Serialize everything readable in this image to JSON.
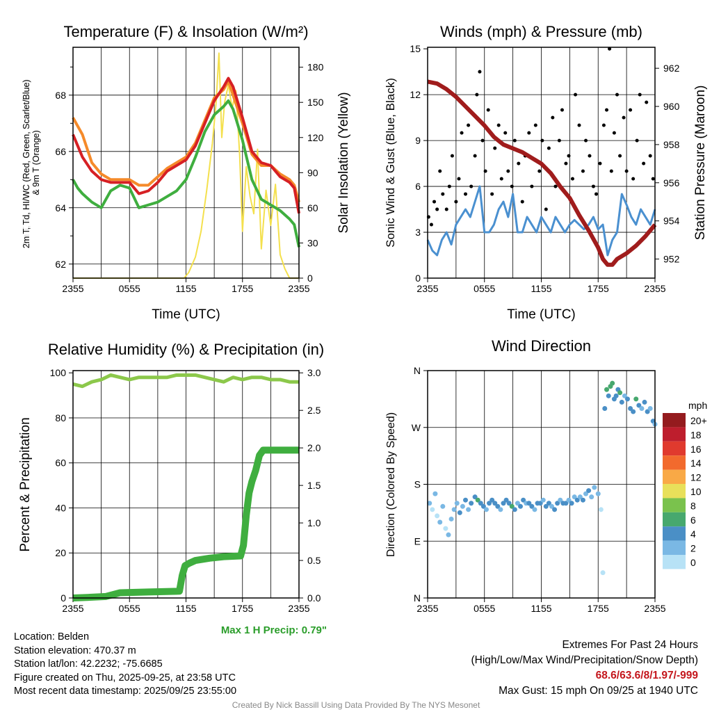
{
  "chart_data": [
    {
      "type": "line",
      "title": "Temperature (F) & Insolation (W/m²)",
      "xlabel": "Time (UTC)",
      "ylabel": "2m T, Td, HI/WC (Red, Green, Scarlet/Blue) & 9m T (Orange)",
      "ylabel_line1": "2m T, Tₐ, HI/WC (Red, Green, Scarlet/Blue)",
      "ylabel_line2": "& 9m T (Orange)",
      "y2label": "Solar Insolation (Yellow)",
      "ylim": [
        61.5,
        69.7
      ],
      "y2lim": [
        0,
        197
      ],
      "xticks": [
        "2355",
        "0555",
        "1155",
        "1755",
        "2355"
      ],
      "yticks": [
        62,
        64,
        66,
        68
      ],
      "y2ticks": [
        0,
        30,
        60,
        90,
        120,
        150,
        180
      ],
      "x_hours": [
        0,
        0.5,
        1,
        2,
        3,
        4,
        5,
        6,
        7,
        8,
        9,
        10,
        11,
        12,
        13,
        14,
        15,
        16,
        16.5,
        17,
        18,
        19,
        20,
        21,
        22,
        23,
        23.5,
        24
      ],
      "series": [
        {
          "name": "9m T",
          "color": "#f58a2a",
          "axis": "left",
          "values": [
            67.2,
            66.9,
            66.6,
            65.6,
            65.2,
            65.0,
            65.0,
            65.0,
            64.8,
            64.8,
            65.1,
            65.4,
            65.6,
            65.8,
            66.3,
            67.1,
            67.9,
            68.2,
            68.5,
            68.0,
            67.0,
            65.9,
            65.5,
            65.5,
            65.2,
            65.0,
            64.8,
            64.2
          ]
        },
        {
          "name": "2m T",
          "color": "#d62024",
          "axis": "left",
          "values": [
            66.6,
            66.2,
            65.8,
            65.3,
            65.0,
            64.9,
            64.9,
            64.9,
            64.5,
            64.6,
            64.9,
            65.3,
            65.5,
            65.7,
            66.2,
            67.0,
            67.8,
            68.3,
            68.6,
            68.3,
            67.2,
            66.0,
            65.6,
            65.5,
            65.1,
            64.9,
            64.7,
            63.8
          ]
        },
        {
          "name": "Td",
          "color": "#3fae3f",
          "axis": "left",
          "values": [
            65.0,
            64.7,
            64.5,
            64.2,
            64.0,
            64.6,
            64.8,
            64.7,
            64.0,
            64.1,
            64.2,
            64.4,
            64.6,
            65.0,
            65.8,
            66.7,
            67.3,
            67.6,
            67.8,
            67.5,
            66.4,
            65.0,
            64.3,
            64.1,
            63.9,
            63.6,
            63.4,
            62.6
          ]
        },
        {
          "name": "Solar",
          "color": "#f4e04d",
          "axis": "right",
          "x_hours": [
            0,
            11.8,
            12.3,
            13,
            13.6,
            14.2,
            14.8,
            15.2,
            15.5,
            15.8,
            16.1,
            16.5,
            16.9,
            17.3,
            17.7,
            18,
            18.4,
            18.8,
            19.2,
            19.6,
            20,
            20.5,
            21,
            21.5,
            22,
            22.5,
            23,
            24
          ],
          "values": [
            0,
            0,
            5,
            18,
            40,
            75,
            115,
            150,
            192,
            120,
            150,
            165,
            145,
            160,
            105,
            40,
            95,
            70,
            55,
            110,
            25,
            75,
            45,
            80,
            20,
            8,
            0,
            0
          ]
        }
      ]
    },
    {
      "type": "line",
      "title": "Winds (mph) & Pressure (mb)",
      "xlabel": "Time (UTC)",
      "ylabel": "Sonic Wind & Gust (Blue, Black)",
      "y2label": "Station Pressure (Maroon)",
      "ylim": [
        0,
        15.1
      ],
      "y2lim": [
        951.0,
        963.1
      ],
      "xticks": [
        "2355",
        "0555",
        "1155",
        "1755",
        "2355"
      ],
      "yticks": [
        0,
        3,
        6,
        9,
        12,
        15
      ],
      "y2ticks": [
        952,
        954,
        956,
        958,
        960,
        962
      ],
      "series": [
        {
          "name": "Sonic Wind",
          "color": "#4a90d0",
          "x_hours": [
            0,
            0.5,
            1,
            1.5,
            2,
            2.5,
            3,
            3.5,
            4,
            4.5,
            5,
            5.5,
            6,
            6.5,
            7,
            7.5,
            8,
            8.5,
            9,
            9.5,
            10,
            10.5,
            11,
            11.5,
            12,
            12.5,
            13,
            13.5,
            14,
            14.5,
            15,
            15.5,
            16,
            16.5,
            17,
            17.5,
            18,
            18.5,
            19,
            19.5,
            20,
            20.5,
            21,
            21.5,
            22,
            22.5,
            23,
            23.5,
            24
          ],
          "values": [
            2.5,
            1.8,
            1.5,
            2.5,
            3,
            2.2,
            3.5,
            4,
            4.5,
            4,
            5,
            6,
            3,
            3,
            3.5,
            4.5,
            5,
            4,
            5.5,
            3,
            3,
            4,
            3.5,
            3,
            4,
            3.5,
            3,
            4,
            3.5,
            3,
            3.5,
            3.8,
            3.5,
            3.2,
            3.5,
            4,
            3.2,
            3.5,
            1.5,
            2.5,
            3,
            5.5,
            4.8,
            4,
            3.5,
            4.5,
            4,
            3.5,
            4.5
          ]
        },
        {
          "name": "Gust",
          "color": "#000000",
          "style": "points",
          "x_hours": [
            0.1,
            0.4,
            0.7,
            1,
            1.3,
            1.6,
            2,
            2.3,
            2.6,
            3,
            3.3,
            3.6,
            4,
            4.3,
            4.6,
            5,
            5.2,
            5.5,
            5.8,
            6.1,
            6.4,
            6.8,
            7.1,
            7.5,
            7.8,
            8.2,
            8.5,
            8.9,
            9.2,
            9.6,
            10,
            10.3,
            10.7,
            11,
            11.4,
            11.8,
            12.1,
            12.5,
            12.8,
            13.2,
            13.5,
            13.9,
            14.2,
            14.6,
            14.9,
            15.3,
            15.6,
            16,
            16.4,
            16.7,
            17.1,
            17.5,
            17.8,
            18.2,
            18.6,
            18.9,
            19.2,
            19.4,
            19.7,
            20,
            20.3,
            20.7,
            21,
            21.4,
            21.7,
            22.1,
            22.4,
            22.8,
            23.1,
            23.5,
            23.8
          ],
          "values": [
            4,
            3.5,
            5,
            4.5,
            7,
            5.5,
            4.5,
            6,
            8,
            5,
            6.5,
            9.5,
            5.5,
            10,
            6,
            8,
            12,
            13.5,
            9,
            7,
            11,
            5.5,
            8.5,
            10,
            6.5,
            9.5,
            7,
            6,
            9,
            7.5,
            5,
            8,
            9.5,
            6,
            10,
            7,
            9,
            4.5,
            8.5,
            10.5,
            6,
            9,
            11,
            7.5,
            8,
            6.5,
            12,
            10,
            7,
            9,
            8,
            6,
            5.5,
            7.5,
            10,
            11,
            15,
            7,
            9.5,
            12,
            8,
            10.5,
            7,
            11,
            6.5,
            9,
            12,
            7.5,
            11.5,
            8,
            6.5
          ]
        },
        {
          "name": "Pressure",
          "color": "#a01c1c",
          "axis": "right",
          "x_hours": [
            0,
            1,
            2,
            3,
            4,
            5,
            6,
            7,
            8,
            9,
            10,
            11,
            12,
            13,
            14,
            15,
            16,
            17,
            18,
            18.5,
            19,
            19.5,
            20,
            21,
            22,
            23,
            24
          ],
          "values": [
            961.3,
            961.2,
            960.9,
            960.5,
            960.0,
            959.5,
            959.0,
            958.4,
            958.0,
            957.8,
            957.6,
            957.3,
            957.0,
            956.5,
            955.8,
            955.2,
            954.3,
            953.5,
            952.6,
            952.0,
            951.7,
            951.7,
            952.0,
            952.3,
            952.7,
            953.2,
            953.8
          ]
        }
      ]
    },
    {
      "type": "line",
      "title": "Relative Humidity (%) & Precipitation (in)",
      "ylabel": "Percent & Precipitation",
      "ylim": [
        0,
        101
      ],
      "y2lim": [
        0,
        3.03
      ],
      "xticks": [
        "2355",
        "0555",
        "1155",
        "1755",
        "2355"
      ],
      "yticks": [
        0,
        20,
        40,
        60,
        80,
        100
      ],
      "y2ticks": [
        "0.0",
        "0.5",
        "1.0",
        "1.5",
        "2.0",
        "2.5",
        "3.0"
      ],
      "annotation": "Max 1 H Precip: 0.79\"",
      "series": [
        {
          "name": "RH",
          "color": "#8cc84b",
          "x_hours": [
            0,
            1,
            2,
            3,
            4,
            5,
            6,
            7,
            8,
            9,
            10,
            11,
            12,
            13,
            14,
            15,
            16,
            17,
            18,
            19,
            20,
            21,
            22,
            23,
            24
          ],
          "values": [
            95,
            94,
            96,
            97,
            99,
            98,
            97,
            98,
            98,
            98,
            98,
            99,
            99,
            99,
            98,
            97,
            96,
            98,
            97,
            98,
            98,
            97,
            97,
            96,
            96
          ]
        },
        {
          "name": "Precip",
          "color": "#3fae3f",
          "axis": "right",
          "x_hours": [
            0,
            2,
            3.5,
            5,
            8,
            11.3,
            11.6,
            11.9,
            12.3,
            13,
            14.5,
            16,
            17.8,
            18.1,
            18.4,
            18.7,
            19,
            19.4,
            19.8,
            20.2,
            24
          ],
          "values": [
            0,
            0.01,
            0.02,
            0.07,
            0.08,
            0.09,
            0.3,
            0.43,
            0.46,
            0.5,
            0.53,
            0.55,
            0.56,
            0.7,
            1.1,
            1.4,
            1.55,
            1.7,
            1.9,
            1.97,
            1.97
          ]
        }
      ]
    },
    {
      "type": "scatter",
      "title": "Wind Direction",
      "ylabel": "Direction (Colored By Speed)",
      "ylim": [
        0,
        360
      ],
      "xticks": [
        "2355",
        "0555",
        "1155",
        "1755",
        "2355"
      ],
      "yticks": [
        "N",
        "E",
        "S",
        "W",
        "N"
      ],
      "legend": {
        "title": "mph",
        "labels": [
          "20+",
          "18",
          "16",
          "14",
          "12",
          "10",
          "8",
          "6",
          "4",
          "2",
          "0"
        ],
        "colors": [
          "#941b1e",
          "#be1e2d",
          "#e03a2e",
          "#f26a2d",
          "#f9a946",
          "#e8e05a",
          "#7ac24d",
          "#47a86e",
          "#4a8fc6",
          "#7ab8e4",
          "#b7e2f6"
        ]
      },
      "points": {
        "x_hours": [
          0.2,
          0.5,
          0.8,
          1,
          1.3,
          1.6,
          1.9,
          2.2,
          2.5,
          2.8,
          3.1,
          3.4,
          3.7,
          4,
          4.3,
          4.6,
          5,
          5.3,
          5.6,
          5.9,
          6.2,
          6.5,
          6.8,
          7.1,
          7.4,
          7.7,
          8,
          8.3,
          8.6,
          8.9,
          9.2,
          9.5,
          9.8,
          10.1,
          10.4,
          10.7,
          11,
          11.3,
          11.6,
          11.9,
          12.2,
          12.5,
          12.8,
          13.1,
          13.4,
          13.7,
          14,
          14.3,
          14.6,
          14.9,
          15.2,
          15.5,
          15.8,
          16.1,
          16.4,
          16.7,
          17,
          17.3,
          17.6,
          18,
          18.3,
          18.5,
          18.7,
          18.9,
          19.1,
          19.3,
          19.5,
          19.7,
          19.9,
          20.1,
          20.3,
          20.5,
          20.8,
          21.1,
          21.4,
          21.7,
          22,
          22.3,
          22.6,
          22.9,
          23.2,
          23.5,
          23.8,
          24
        ],
        "deg": [
          150,
          140,
          165,
          130,
          120,
          145,
          110,
          100,
          125,
          140,
          150,
          135,
          145,
          155,
          140,
          150,
          160,
          155,
          150,
          145,
          140,
          150,
          155,
          150,
          145,
          140,
          150,
          155,
          150,
          145,
          140,
          150,
          145,
          155,
          150,
          150,
          145,
          140,
          150,
          150,
          155,
          145,
          150,
          145,
          140,
          150,
          155,
          150,
          150,
          155,
          150,
          160,
          155,
          160,
          155,
          165,
          170,
          160,
          175,
          165,
          140,
          40,
          300,
          330,
          320,
          335,
          340,
          315,
          320,
          330,
          325,
          310,
          320,
          315,
          300,
          295,
          315,
          305,
          300,
          310,
          295,
          300,
          280,
          275
        ],
        "speed": [
          2,
          1,
          2,
          1,
          3,
          2,
          1,
          2,
          3,
          2,
          3,
          4,
          3,
          4,
          3,
          4,
          5,
          6,
          4,
          4,
          3,
          4,
          5,
          4,
          4,
          3,
          4,
          5,
          4,
          6,
          4,
          3,
          4,
          4,
          3,
          4,
          4,
          3,
          4,
          4,
          3,
          4,
          4,
          3,
          4,
          4,
          3,
          4,
          4,
          3,
          4,
          3,
          4,
          3,
          4,
          3,
          4,
          3,
          3,
          2,
          1,
          1,
          4,
          6,
          4,
          7,
          6,
          5,
          4,
          4,
          6,
          4,
          3,
          4,
          4,
          5,
          6,
          4,
          3,
          4,
          4,
          3,
          4,
          3
        ]
      }
    }
  ],
  "footer": {
    "location": "Location: Belden",
    "elevation": "Station elevation: 470.37 m",
    "latlon": "Station lat/lon: 42.2232; -75.6685",
    "created": "Figure created on Thu, 2025-09-25, at 23:58 UTC",
    "recent": "Most recent data timestamp: 2025/09/25 23:55:00",
    "extremes_title": "Extremes For Past 24 Hours",
    "extremes_sub": "(High/Low/Max Wind/Precipitation/Snow Depth)",
    "extremes_values": "68.6/63.6/8/1.97/-999",
    "max_gust": "Max Gust: 15 mph On 09/25 at 1940 UTC",
    "credit": "Created By Nick Bassill Using Data Provided By The NYS Mesonet"
  }
}
